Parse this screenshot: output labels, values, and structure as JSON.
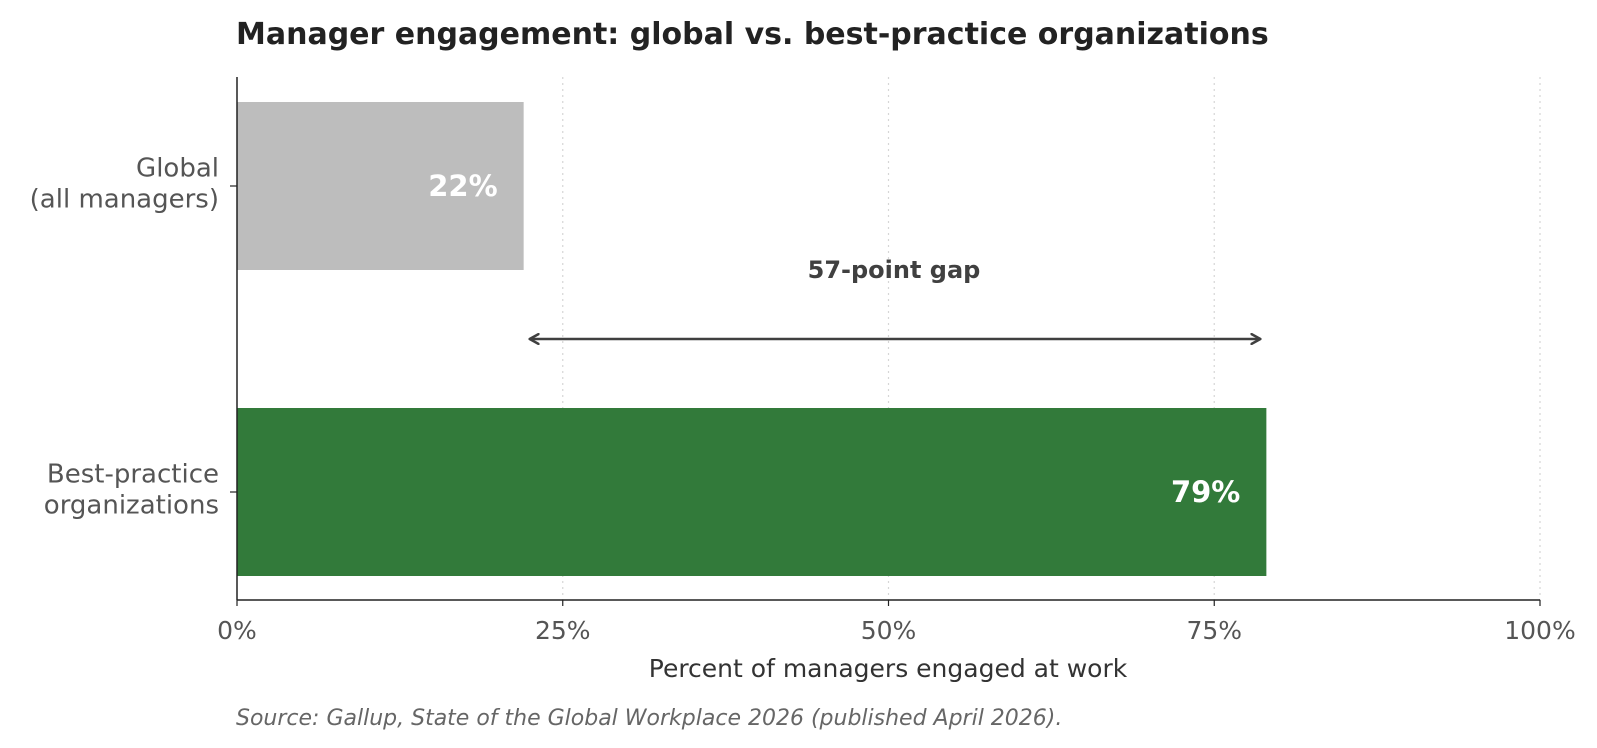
{
  "chart_data": {
    "type": "bar",
    "orientation": "horizontal",
    "title": "Manager engagement: global vs. best-practice organizations",
    "xlabel": "Percent of managers engaged at work",
    "ylabel": "",
    "xlim": [
      0,
      100
    ],
    "x_ticks": [
      0,
      25,
      50,
      75,
      100
    ],
    "x_tick_labels": [
      "0%",
      "25%",
      "50%",
      "75%",
      "100%"
    ],
    "grid": "vertical dotted",
    "categories": [
      [
        "Global",
        "(all managers)"
      ],
      [
        "Best-practice",
        "organizations"
      ]
    ],
    "values": [
      22,
      79
    ],
    "value_labels": [
      "22%",
      "79%"
    ],
    "colors": [
      "#bdbdbd",
      "#327a3a"
    ],
    "annotation": {
      "text": "57-point gap",
      "from": 22,
      "to": 79
    },
    "source": "Source: Gallup, State of the Global Workplace 2026 (published April 2026)."
  }
}
